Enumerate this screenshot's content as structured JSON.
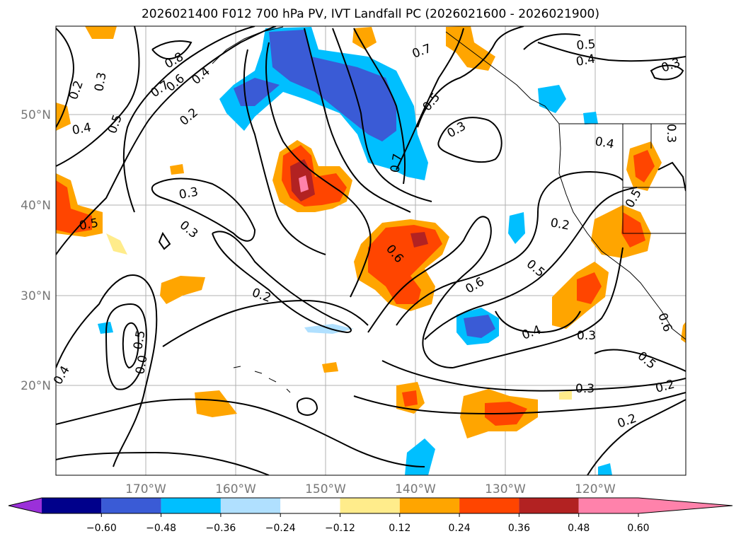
{
  "title": "2026021400 F012 700 hPa PV, IVT Landfall PC (2026021600 - 2026021900)",
  "lat_labels": [
    "50°N",
    "40°N",
    "30°N",
    "20°N"
  ],
  "lon_labels": [
    "170°W",
    "160°W",
    "150°W",
    "140°W",
    "130°W",
    "120°W"
  ],
  "contour_labels": [
    "0.5",
    "0.4",
    "0.3",
    "0.7",
    "0.8",
    "0.2",
    "0.3",
    "0.7",
    "0.6",
    "0.4",
    "0.5",
    "0.4",
    "0.5",
    "0.2",
    "0.3",
    "0.3",
    "0.7",
    "0.3",
    "0.5",
    "0.4",
    "0.3",
    "0.2",
    "0.5",
    "0.6",
    "0.2",
    "0.6",
    "0.5",
    "0.4",
    "0.3",
    "0.5",
    "0.6",
    "0.4",
    "0.5",
    "0.0",
    "0.3",
    "0.2",
    "0.2",
    "0.4",
    "0.4",
    "0.3"
  ],
  "colorbar": {
    "ticks": [
      "−0.60",
      "−0.48",
      "−0.36",
      "−0.24",
      "−0.12",
      "0.12",
      "0.24",
      "0.36",
      "0.48",
      "0.60"
    ],
    "colors": [
      "#9b30d9",
      "#00008b",
      "#3a5bd6",
      "#00bfff",
      "#b0e0ff",
      "#ffffff",
      "#ffec8b",
      "#ffa500",
      "#ff4500",
      "#b22222",
      "#ff82ab"
    ]
  }
}
